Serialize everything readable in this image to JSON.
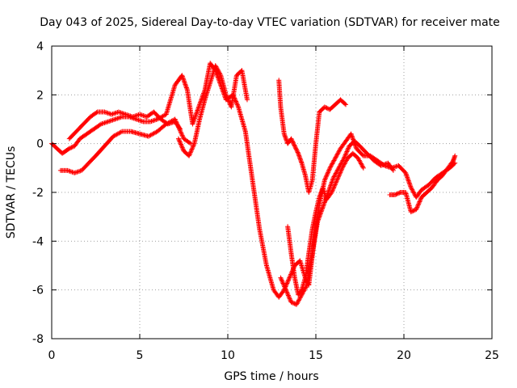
{
  "chart_data": {
    "type": "scatter",
    "title": "Day 043 of 2025, Sidereal Day-to-day VTEC variation (SDTVAR) for receiver mate",
    "xlabel": "GPS time / hours",
    "ylabel": "SDTVAR / TECUs",
    "xlim": [
      0,
      25
    ],
    "ylim": [
      -8,
      4
    ],
    "xticks": [
      "0",
      "5",
      "10",
      "15",
      "20",
      "25"
    ],
    "yticks": [
      "-8",
      "-6",
      "-4",
      "-2",
      "0",
      "2",
      "4"
    ],
    "grid": true,
    "marker": "+",
    "color": "#ff0000",
    "series": [
      {
        "x": [
          0.0,
          0.3,
          0.6,
          0.8,
          1.0,
          1.3,
          1.6,
          2.0,
          2.4,
          2.8,
          3.2,
          3.6,
          4.0,
          4.4,
          4.8,
          5.2,
          5.6,
          6.0,
          6.5,
          7.0,
          7.4,
          7.7,
          8.0,
          8.4,
          8.7,
          9.0,
          9.3,
          9.6,
          9.9,
          10.3,
          10.6,
          11.0,
          11.4,
          11.8,
          12.2,
          12.6,
          12.9,
          13.2,
          13.5,
          13.8,
          14.1,
          14.4,
          14.6,
          14.9,
          15.2,
          15.5,
          15.8,
          16.1,
          16.4,
          16.7,
          17.0,
          17.3,
          17.7,
          18.1,
          18.5,
          18.9,
          19.3,
          19.7,
          20.1,
          20.4,
          20.7,
          21.0,
          21.4,
          21.8,
          22.2,
          22.6,
          22.9
        ],
        "y": [
          0.0,
          -0.2,
          -0.4,
          -0.3,
          -0.2,
          -0.1,
          0.2,
          0.4,
          0.6,
          0.8,
          0.9,
          1.0,
          1.1,
          1.1,
          1.0,
          0.9,
          0.9,
          1.0,
          1.2,
          2.4,
          2.8,
          2.2,
          0.8,
          1.6,
          2.2,
          3.3,
          3.0,
          2.4,
          1.8,
          2.0,
          1.5,
          0.5,
          -1.5,
          -3.5,
          -5.0,
          -6.0,
          -6.3,
          -6.0,
          -5.5,
          -5.0,
          -4.8,
          -5.5,
          -5.8,
          -4.0,
          -2.5,
          -1.5,
          -1.0,
          -0.6,
          -0.2,
          0.1,
          0.4,
          -0.2,
          -0.5,
          -0.5,
          -0.7,
          -0.9,
          -1.0,
          -0.9,
          -1.2,
          -1.8,
          -2.2,
          -1.9,
          -1.7,
          -1.4,
          -1.2,
          -1.0,
          -0.8
        ]
      },
      {
        "x": [
          0.5,
          0.9,
          1.3,
          1.7,
          2.1,
          2.5,
          3.0,
          3.5,
          4.0,
          4.5,
          5.0,
          5.5,
          6.0,
          6.5,
          7.0,
          7.5,
          7.9
        ],
        "y": [
          -1.1,
          -1.1,
          -1.2,
          -1.1,
          -0.8,
          -0.5,
          -0.1,
          0.3,
          0.5,
          0.5,
          0.4,
          0.3,
          0.5,
          0.8,
          1.0,
          0.2,
          0.0
        ]
      },
      {
        "x": [
          1.0,
          1.4,
          1.8,
          2.2,
          2.6,
          3.0,
          3.4,
          3.8,
          4.2,
          4.6,
          5.0,
          5.4,
          5.8,
          6.2,
          6.6,
          7.0,
          7.3
        ],
        "y": [
          0.2,
          0.5,
          0.8,
          1.1,
          1.3,
          1.3,
          1.2,
          1.3,
          1.2,
          1.1,
          1.2,
          1.1,
          1.3,
          1.0,
          0.8,
          0.9,
          0.6
        ]
      },
      {
        "x": [
          12.9,
          13.0,
          13.2,
          13.4,
          13.6,
          13.8,
          14.0,
          14.2,
          14.4,
          14.6,
          14.8,
          15.0,
          15.2,
          15.5,
          15.8,
          16.1,
          16.4,
          16.7
        ],
        "y": [
          2.6,
          1.5,
          0.4,
          0.0,
          0.2,
          -0.1,
          -0.4,
          -0.8,
          -1.3,
          -2.0,
          -1.5,
          0.0,
          1.3,
          1.5,
          1.4,
          1.6,
          1.8,
          1.6
        ]
      },
      {
        "x": [
          13.4,
          13.6,
          13.8,
          14.0,
          14.2,
          14.4,
          14.6,
          14.8,
          15.0,
          15.2,
          15.4,
          15.6,
          15.9,
          16.2,
          16.5,
          16.8,
          17.1,
          17.4,
          17.7
        ],
        "y": [
          -3.4,
          -4.5,
          -5.5,
          -6.2,
          -6.0,
          -5.5,
          -4.5,
          -3.5,
          -2.8,
          -2.2,
          -1.8,
          -2.3,
          -2.0,
          -1.5,
          -1.0,
          -0.6,
          -0.4,
          -0.6,
          -1.0
        ]
      },
      {
        "x": [
          13.0,
          13.3,
          13.6,
          13.9,
          14.2,
          14.5,
          14.8,
          15.1,
          15.4,
          15.7,
          16.0,
          16.3,
          16.6,
          16.9,
          17.2,
          17.5,
          17.9,
          18.3,
          18.7,
          19.1,
          19.4
        ],
        "y": [
          -5.5,
          -6.0,
          -6.5,
          -6.6,
          -6.2,
          -5.8,
          -4.5,
          -3.2,
          -2.6,
          -2.0,
          -1.4,
          -1.0,
          -0.6,
          -0.1,
          0.1,
          -0.1,
          -0.4,
          -0.7,
          -0.9,
          -0.8,
          -1.1
        ]
      },
      {
        "x": [
          19.2,
          19.5,
          19.8,
          20.1,
          20.4,
          20.7,
          21.0,
          21.3,
          21.6,
          21.9,
          22.2,
          22.5,
          22.8,
          22.9
        ],
        "y": [
          -2.1,
          -2.1,
          -2.0,
          -2.0,
          -2.8,
          -2.7,
          -2.2,
          -2.0,
          -1.8,
          -1.5,
          -1.3,
          -1.0,
          -0.7,
          -0.5
        ]
      },
      {
        "x": [
          7.2,
          7.5,
          7.8,
          8.1,
          8.4,
          8.7,
          9.0,
          9.3,
          9.6,
          9.9,
          10.2,
          10.5,
          10.8,
          11.1
        ],
        "y": [
          0.2,
          -0.3,
          -0.5,
          0.0,
          1.0,
          1.8,
          2.5,
          3.2,
          2.8,
          2.0,
          1.5,
          2.8,
          3.0,
          1.8
        ]
      }
    ]
  }
}
